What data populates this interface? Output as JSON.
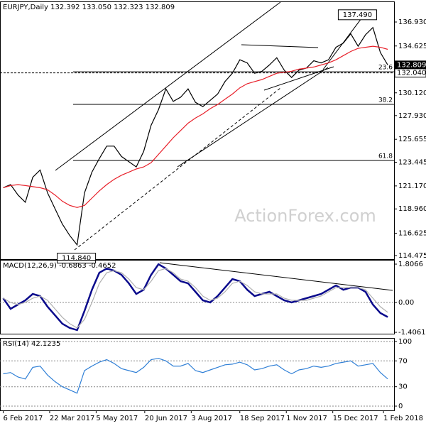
{
  "chart_data": [
    {
      "type": "line",
      "title": "EURJPY,Daily  132.392 133.050 132.323 132.809",
      "watermark": "ActionForex.com",
      "x": [
        "2017-02-06",
        "2017-02-13",
        "2017-02-20",
        "2017-02-27",
        "2017-03-06",
        "2017-03-13",
        "2017-03-20",
        "2017-03-27",
        "2017-04-03",
        "2017-04-10",
        "2017-04-17",
        "2017-04-24",
        "2017-05-01",
        "2017-05-08",
        "2017-05-15",
        "2017-05-22",
        "2017-05-29",
        "2017-06-05",
        "2017-06-12",
        "2017-06-19",
        "2017-06-26",
        "2017-07-03",
        "2017-07-10",
        "2017-07-17",
        "2017-07-24",
        "2017-07-31",
        "2017-08-07",
        "2017-08-14",
        "2017-08-21",
        "2017-08-28",
        "2017-09-04",
        "2017-09-11",
        "2017-09-18",
        "2017-09-25",
        "2017-10-02",
        "2017-10-09",
        "2017-10-16",
        "2017-10-23",
        "2017-10-30",
        "2017-11-06",
        "2017-11-13",
        "2017-11-20",
        "2017-11-27",
        "2017-12-04",
        "2017-12-11",
        "2017-12-18",
        "2017-12-25",
        "2018-01-01",
        "2018-01-08",
        "2018-01-15",
        "2018-01-22",
        "2018-01-29",
        "2018-02-05"
      ],
      "series": [
        {
          "name": "Close",
          "color": "#000000",
          "values": [
            121.0,
            121.3,
            120.3,
            119.6,
            122.0,
            122.7,
            120.5,
            119.0,
            117.5,
            116.4,
            115.5,
            120.5,
            122.5,
            123.8,
            125.0,
            125.0,
            124.0,
            123.5,
            123.0,
            124.5,
            127.0,
            128.5,
            130.5,
            129.3,
            129.7,
            130.5,
            129.2,
            128.8,
            129.4,
            130.0,
            131.2,
            132.0,
            133.3,
            133.0,
            132.0,
            132.2,
            132.8,
            133.5,
            132.3,
            131.6,
            132.3,
            132.5,
            133.2,
            133.0,
            133.3,
            134.5,
            134.9,
            135.8,
            134.6,
            135.7,
            136.4,
            134.0,
            132.809
          ]
        },
        {
          "name": "MA",
          "color": "#e8202a",
          "values": [
            121.0,
            121.2,
            121.3,
            121.2,
            121.1,
            121.0,
            120.8,
            120.3,
            119.7,
            119.3,
            119.1,
            119.3,
            120.0,
            120.7,
            121.3,
            121.8,
            122.2,
            122.5,
            122.8,
            123.0,
            123.4,
            124.2,
            125.0,
            125.8,
            126.5,
            127.2,
            127.7,
            128.1,
            128.6,
            129.0,
            129.5,
            130.0,
            130.6,
            131.0,
            131.2,
            131.4,
            131.7,
            132.0,
            132.1,
            132.2,
            132.4,
            132.5,
            132.6,
            132.8,
            133.0,
            133.3,
            133.7,
            134.1,
            134.4,
            134.5,
            134.6,
            134.5,
            134.3
          ]
        }
      ],
      "xlim": [
        "2017-02-03",
        "2018-02-11"
      ],
      "xticks": [
        {
          "value": "2017-02-06",
          "label": "6 Feb 2017"
        },
        {
          "value": "2017-03-22",
          "label": "22 Mar 2017"
        },
        {
          "value": "2017-05-05",
          "label": "5 May 2017"
        },
        {
          "value": "2017-06-20",
          "label": "20 Jun 2017"
        },
        {
          "value": "2017-08-03",
          "label": "3 Aug 2017"
        },
        {
          "value": "2017-09-18",
          "label": "18 Sep 2017"
        },
        {
          "value": "2017-11-01",
          "label": "1 Nov 2017"
        },
        {
          "value": "2017-12-15",
          "label": "15 Dec 2017"
        },
        {
          "value": "2018-02-01",
          "label": "1 Feb 2018"
        }
      ],
      "ylim": [
        114.13,
        138.91
      ],
      "yticks": [
        114.475,
        116.625,
        {
          "value": 118.96,
          "label": "118.960"
        },
        {
          "value": 121.17,
          "label": "121.170"
        },
        123.445,
        125.655,
        {
          "value": 127.93,
          "label": "127.930"
        },
        {
          "value": 130.12,
          "label": "130.120"
        },
        134.625,
        {
          "value": 136.93,
          "label": "136.930"
        }
      ],
      "hline": {
        "value": 132.04,
        "label": "132.040"
      },
      "last": {
        "value": 132.809,
        "label": "132.809"
      },
      "fib": [
        {
          "value": 132.14,
          "label": "23.6"
        },
        {
          "value": 129.01,
          "label": "38.2"
        },
        {
          "value": 123.62,
          "label": "61.8"
        }
      ],
      "annotations": [
        {
          "x": "2018-01-08",
          "value": 137.49,
          "label": "137.490"
        },
        {
          "x": "2017-04-17",
          "value": 114.84,
          "label": "114.840"
        }
      ]
    },
    {
      "type": "line",
      "title": "MACD(12,26,9) -0.6863 -0.4652",
      "series": [
        {
          "name": "MACD",
          "color": "#0a0a8c",
          "values": [
            0.2,
            -0.3,
            -0.1,
            0.1,
            0.4,
            0.3,
            -0.2,
            -0.6,
            -1.0,
            -1.2,
            -1.3,
            -0.4,
            0.6,
            1.4,
            1.6,
            1.5,
            1.3,
            0.9,
            0.4,
            0.6,
            1.3,
            1.8,
            1.6,
            1.3,
            1.0,
            0.9,
            0.5,
            0.1,
            0.0,
            0.3,
            0.7,
            1.1,
            1.0,
            0.6,
            0.3,
            0.4,
            0.5,
            0.3,
            0.1,
            0.0,
            0.1,
            0.2,
            0.3,
            0.4,
            0.6,
            0.8,
            0.6,
            0.7,
            0.7,
            0.5,
            -0.1,
            -0.5,
            -0.6863
          ]
        },
        {
          "name": "Signal",
          "color": "#b0b0b0",
          "values": [
            0.2,
            0.0,
            -0.1,
            0.0,
            0.2,
            0.3,
            0.1,
            -0.3,
            -0.7,
            -1.0,
            -1.2,
            -0.8,
            0.0,
            0.9,
            1.4,
            1.5,
            1.4,
            1.1,
            0.7,
            0.6,
            1.0,
            1.5,
            1.6,
            1.4,
            1.1,
            1.0,
            0.7,
            0.3,
            0.1,
            0.2,
            0.5,
            0.9,
            1.0,
            0.8,
            0.5,
            0.4,
            0.4,
            0.4,
            0.2,
            0.1,
            0.1,
            0.1,
            0.2,
            0.3,
            0.5,
            0.7,
            0.7,
            0.7,
            0.7,
            0.6,
            0.2,
            -0.2,
            -0.4652
          ]
        }
      ],
      "ylim": [
        -1.472,
        2.007
      ],
      "yticks": [
        -1.4061,
        {
          "value": 0,
          "label": "0.00"
        },
        1.8066
      ]
    },
    {
      "type": "line",
      "title": "RSI(14) 42.1235",
      "series": [
        {
          "name": "RSI",
          "color": "#2f7fd6",
          "values": [
            50,
            52,
            45,
            42,
            60,
            62,
            48,
            38,
            30,
            25,
            20,
            55,
            62,
            68,
            72,
            66,
            58,
            55,
            52,
            60,
            72,
            74,
            70,
            62,
            62,
            66,
            55,
            52,
            56,
            60,
            64,
            65,
            68,
            64,
            56,
            58,
            62,
            64,
            56,
            50,
            56,
            58,
            62,
            60,
            62,
            66,
            68,
            70,
            62,
            64,
            66,
            52,
            42.1235
          ]
        }
      ],
      "ylim": [
        -6.6,
        105.5
      ],
      "yticks": [
        0,
        30,
        70,
        100
      ],
      "grid": true
    }
  ]
}
